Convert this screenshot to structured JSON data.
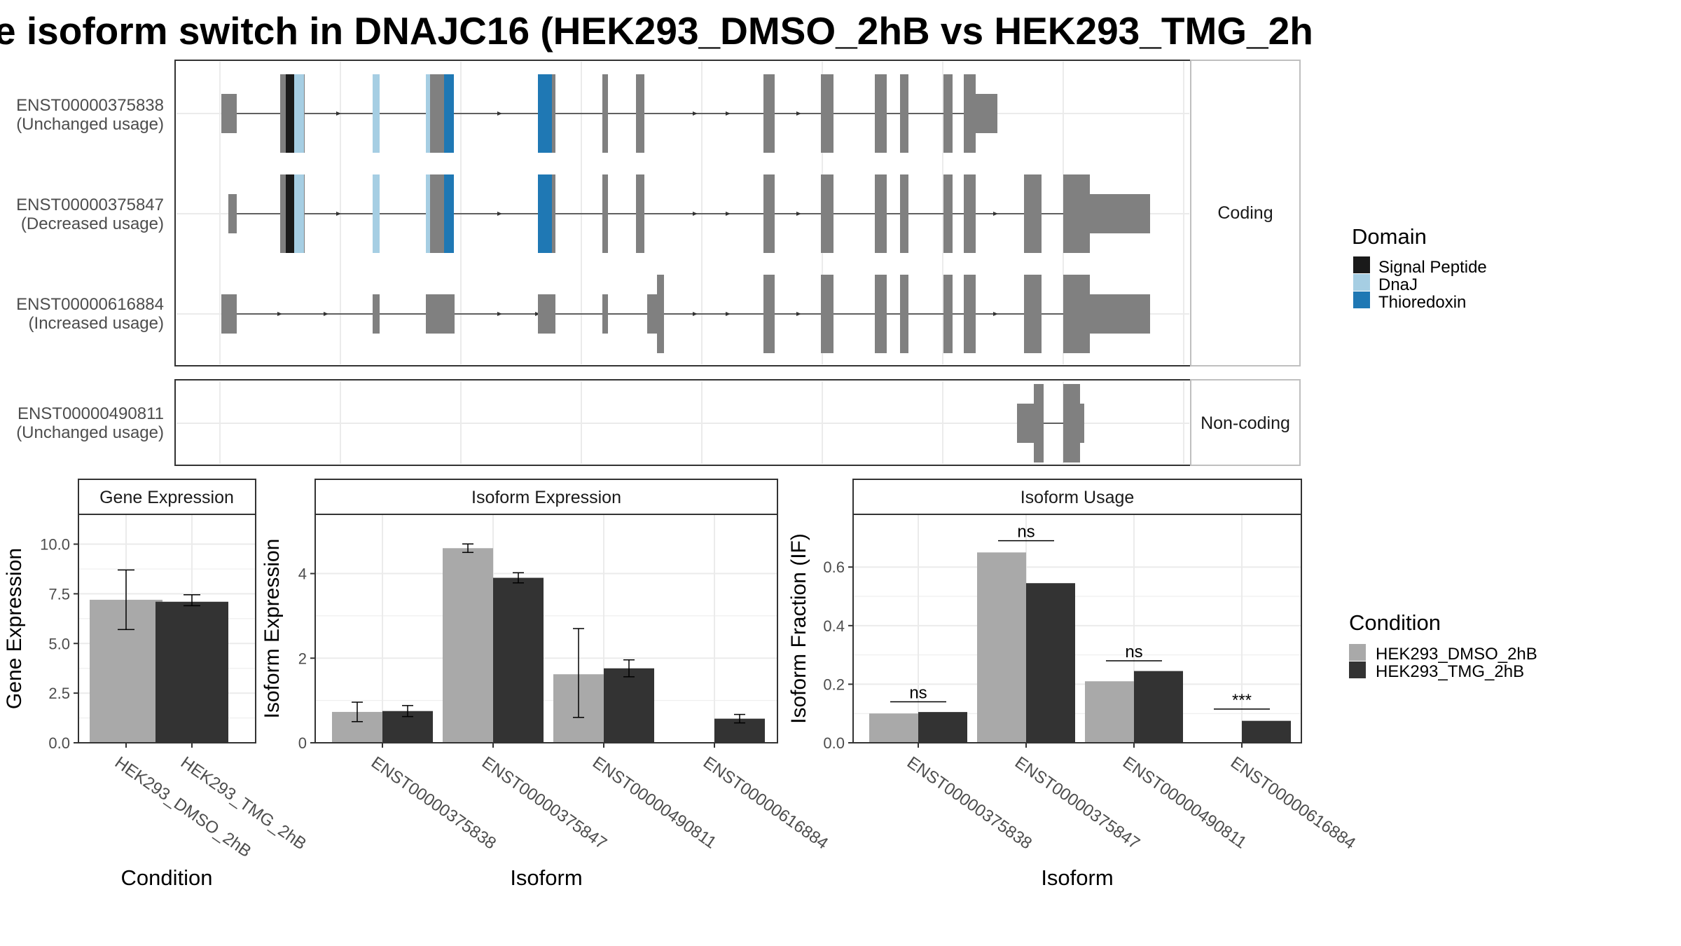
{
  "title": "e isoform switch in DNAJC16 (HEK293_DMSO_2hB vs HEK293_TMG_2h",
  "colors": {
    "exon": "#808080",
    "signal_peptide": "#1a1a1a",
    "dnaj": "#a6cee3",
    "thioredoxin": "#1f78b4",
    "dmso": "#a9a9a9",
    "tmg": "#333333",
    "grid": "#ebebeb",
    "panel_border": "#333333",
    "strip_border": "#bfbfbf"
  },
  "structure": {
    "facets": [
      {
        "label": "Coding",
        "isoforms": [
          {
            "id": "ENST00000375838",
            "usage": "(Unchanged usage)"
          },
          {
            "id": "ENST00000375847",
            "usage": "(Decreased usage)"
          },
          {
            "id": "ENST00000616884",
            "usage": "(Increased usage)"
          }
        ]
      },
      {
        "label": "Non-coding",
        "isoforms": [
          {
            "id": "ENST00000490811",
            "usage": "(Unchanged usage)"
          }
        ]
      }
    ],
    "legend": {
      "title": "Domain",
      "items": [
        {
          "label": "Signal Peptide",
          "color": "#1a1a1a"
        },
        {
          "label": "DnaJ",
          "color": "#a6cee3"
        },
        {
          "label": "Thioredoxin",
          "color": "#1f78b4"
        }
      ]
    }
  },
  "chart_data": [
    {
      "type": "bar",
      "title": "Gene Expression",
      "xlabel": "Condition",
      "ylabel": "Gene Expression",
      "ylim": [
        0,
        11.5
      ],
      "yticks": [
        "0.0",
        "2.5",
        "5.0",
        "7.5",
        "10.0"
      ],
      "categories": [
        "HEK293_DMSO_2hB",
        "HEK293_TMG_2hB"
      ],
      "values": [
        7.2,
        7.1
      ],
      "errors_low": [
        5.7,
        6.9
      ],
      "errors_high": [
        8.7,
        7.45
      ]
    },
    {
      "type": "bar",
      "title": "Isoform Expression",
      "xlabel": "Isoform",
      "ylabel": "Isoform Expression",
      "ylim": [
        0,
        5.4
      ],
      "yticks": [
        "0",
        "2",
        "4"
      ],
      "categories": [
        "ENST00000375838",
        "ENST00000375847",
        "ENST00000490811",
        "ENST00000616884"
      ],
      "series": [
        {
          "name": "HEK293_DMSO_2hB",
          "values": [
            0.73,
            4.6,
            1.62,
            0.0
          ],
          "low": [
            0.5,
            4.5,
            0.6,
            0.0
          ],
          "high": [
            0.96,
            4.7,
            2.7,
            0.0
          ]
        },
        {
          "name": "HEK293_TMG_2hB",
          "values": [
            0.75,
            3.9,
            1.76,
            0.57
          ],
          "low": [
            0.62,
            3.78,
            1.56,
            0.47
          ],
          "high": [
            0.88,
            4.02,
            1.96,
            0.67
          ]
        }
      ]
    },
    {
      "type": "bar",
      "title": "Isoform Usage",
      "xlabel": "Isoform",
      "ylabel": "Isoform Fraction (IF)",
      "ylim": [
        0,
        0.78
      ],
      "yticks": [
        "0.0",
        "0.2",
        "0.4",
        "0.6"
      ],
      "categories": [
        "ENST00000375838",
        "ENST00000375847",
        "ENST00000490811",
        "ENST00000616884"
      ],
      "series": [
        {
          "name": "HEK293_DMSO_2hB",
          "values": [
            0.1,
            0.65,
            0.21,
            0.0
          ]
        },
        {
          "name": "HEK293_TMG_2hB",
          "values": [
            0.105,
            0.545,
            0.245,
            0.075
          ]
        }
      ],
      "annotations": [
        "ns",
        "ns",
        "ns",
        "***"
      ],
      "annotation_y": [
        0.14,
        0.69,
        0.28,
        0.115
      ]
    }
  ],
  "condition_legend": {
    "title": "Condition",
    "items": [
      {
        "label": "HEK293_DMSO_2hB",
        "color": "#a9a9a9"
      },
      {
        "label": "HEK293_TMG_2hB",
        "color": "#333333"
      }
    ]
  }
}
